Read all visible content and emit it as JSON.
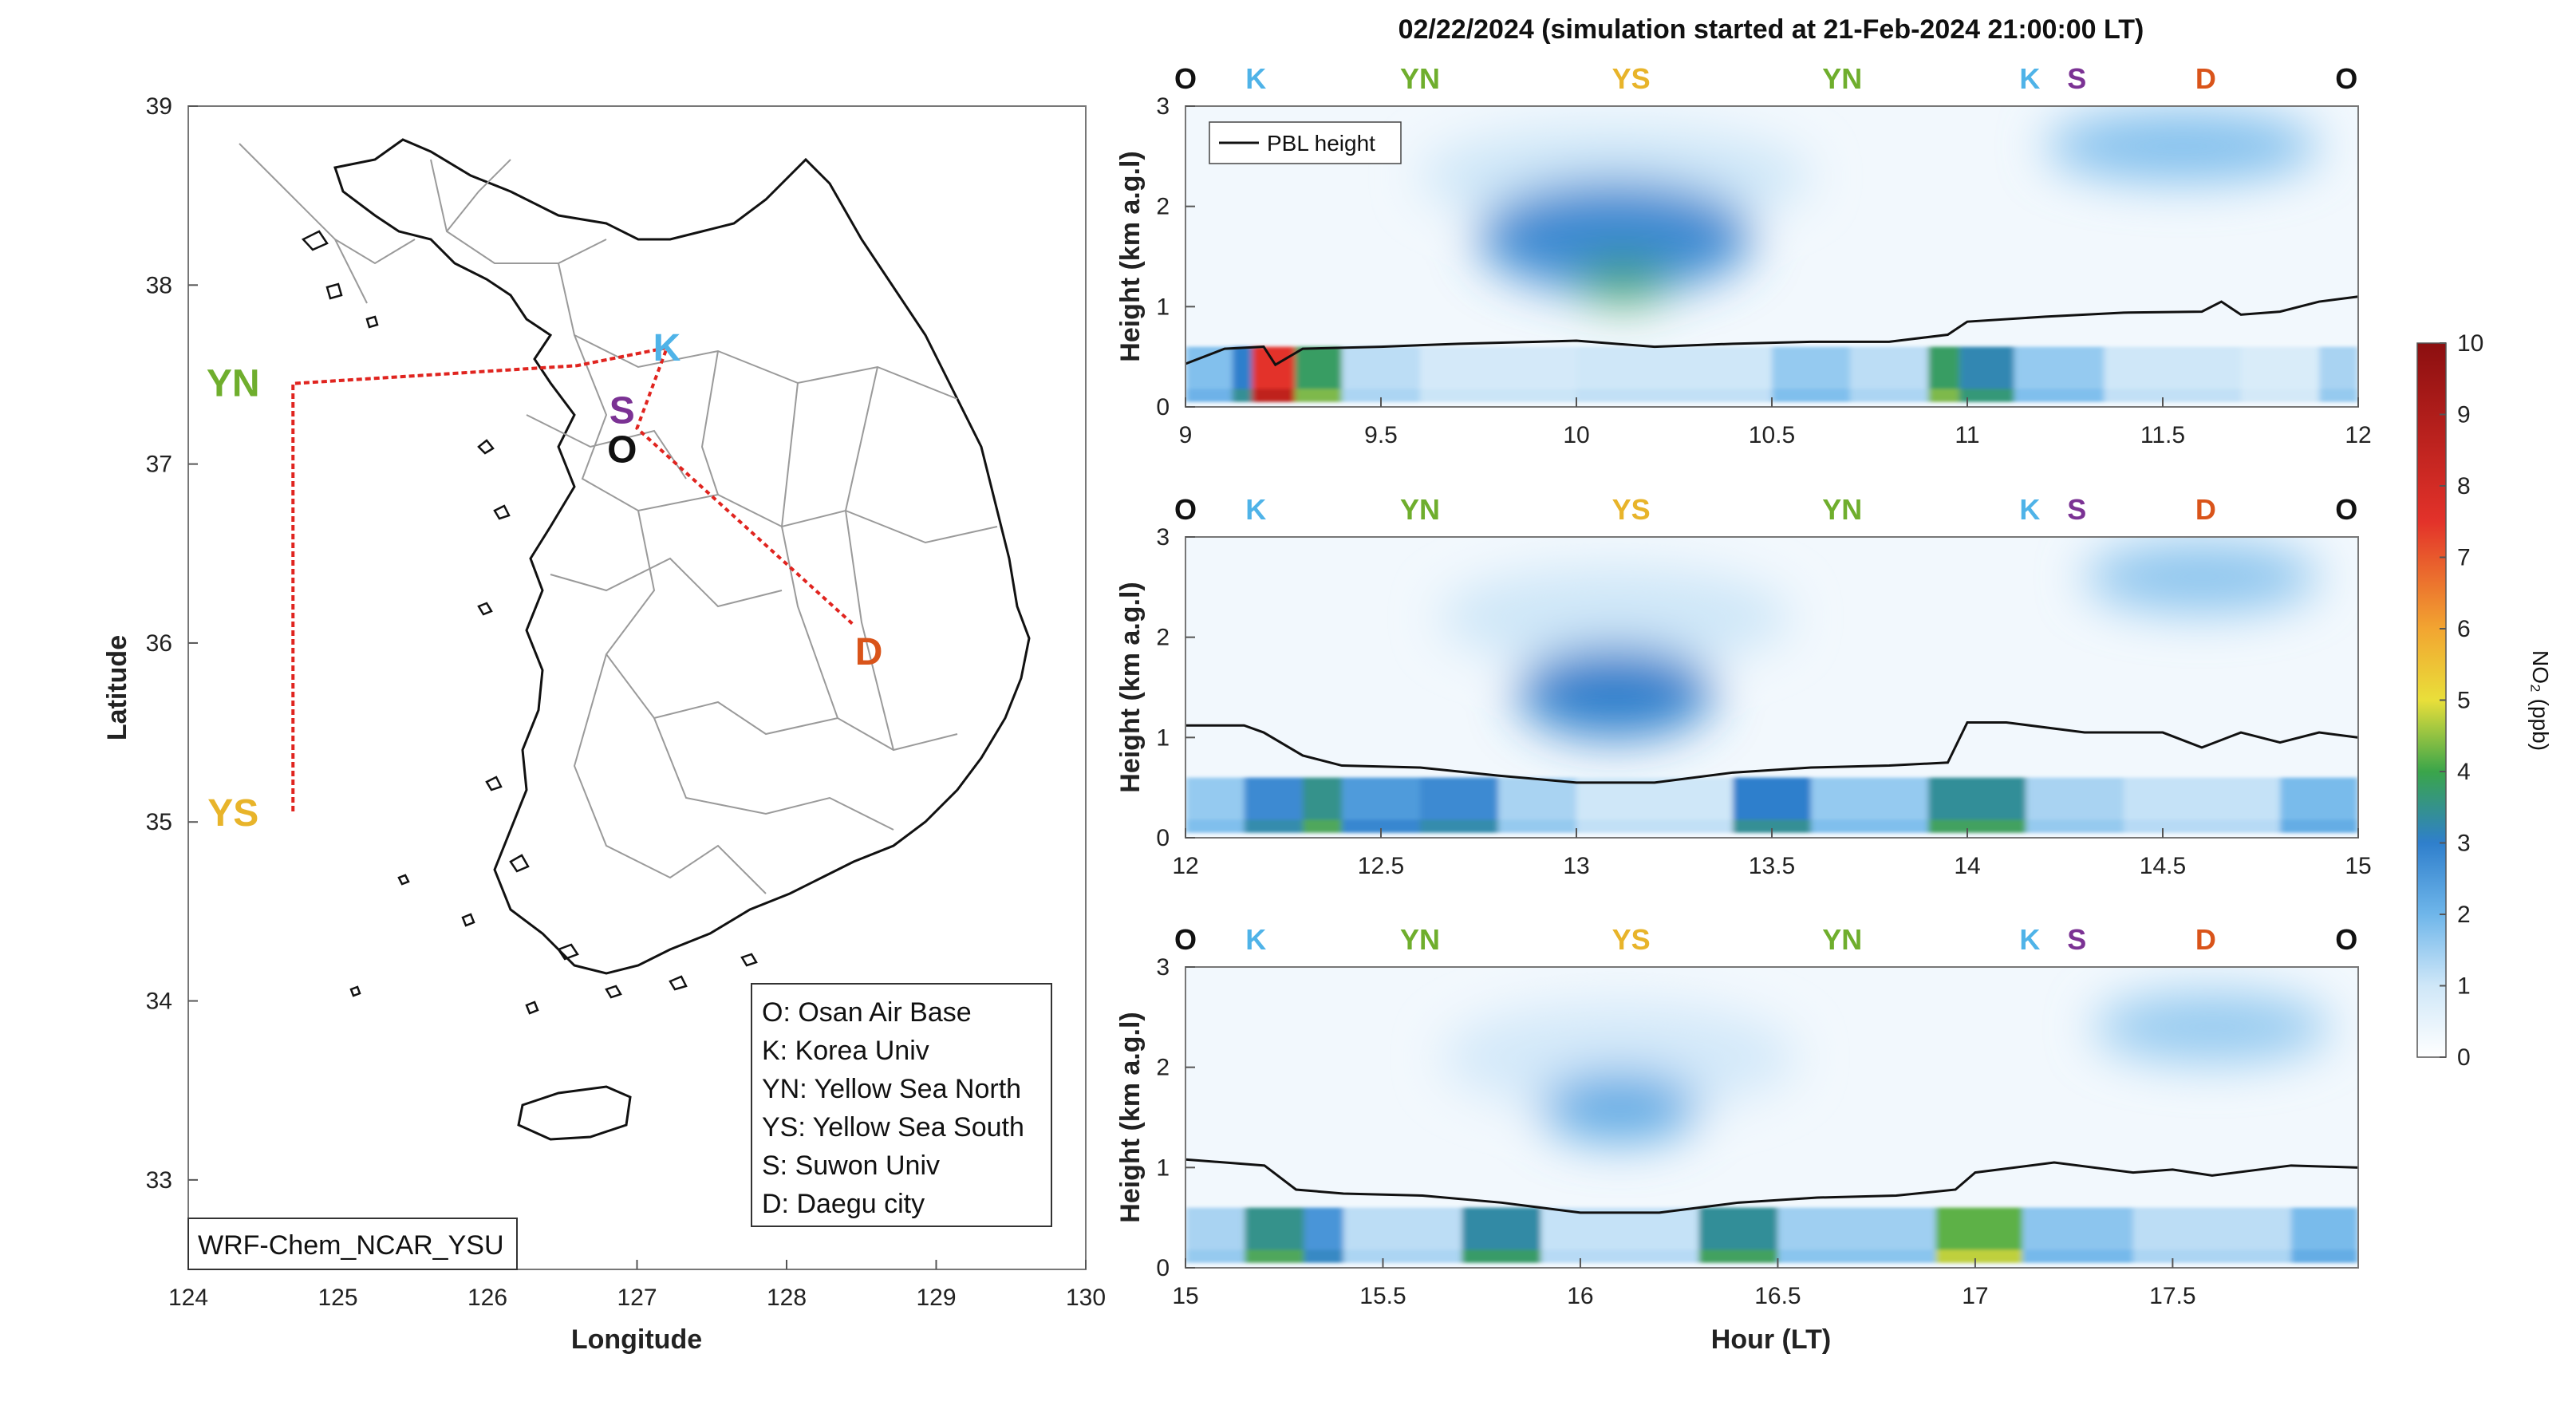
{
  "colors": {
    "O": "#111111",
    "K": "#4fb3e8",
    "YN": "#6fae2d",
    "YS": "#e8b42a",
    "S": "#7b3294",
    "D": "#d9541a",
    "route": "#e0241f",
    "pbl": "#111111"
  },
  "map": {
    "xlabel": "Longitude",
    "ylabel": "Latitude",
    "xticks": [
      "124",
      "125",
      "126",
      "127",
      "128",
      "129",
      "130"
    ],
    "yticks": [
      "39",
      "38",
      "37",
      "36",
      "35",
      "34",
      "33"
    ],
    "xlim": [
      124,
      130
    ],
    "ylim": [
      32.5,
      39
    ],
    "model_label": "WRF-Chem_NCAR_YSU",
    "sites": [
      {
        "key": "K",
        "label": "K",
        "lon": 127.2,
        "lat": 37.65
      },
      {
        "key": "S",
        "label": "S",
        "lon": 126.9,
        "lat": 37.3
      },
      {
        "key": "O",
        "label": "O",
        "lon": 126.9,
        "lat": 37.08
      },
      {
        "key": "YN",
        "label": "YN",
        "lon": 124.3,
        "lat": 37.45
      },
      {
        "key": "YS",
        "label": "YS",
        "lon": 124.3,
        "lat": 35.05
      },
      {
        "key": "D",
        "label": "D",
        "lon": 128.55,
        "lat": 35.95
      }
    ],
    "route": [
      [
        127.2,
        37.65
      ],
      [
        126.6,
        37.55
      ],
      [
        124.7,
        37.45
      ],
      [
        124.7,
        35.05
      ],
      [
        124.7,
        37.45
      ],
      [
        126.6,
        37.55
      ],
      [
        127.2,
        37.65
      ],
      [
        127.0,
        37.2
      ],
      [
        128.45,
        36.1
      ]
    ],
    "legend": [
      "O: Osan Air Base",
      "K: Korea Univ",
      "YN: Yellow Sea North",
      "YS: Yellow Sea South",
      "S: Suwon Univ",
      "D: Daegu city"
    ]
  },
  "title": "02/22/2024 (simulation started at 21-Feb-2024 21:00:00 LT)",
  "panels_common": {
    "ylabel": "Height (km a.g.l)",
    "yticks": [
      "0",
      "1",
      "2",
      "3"
    ],
    "site_sequence": [
      "O",
      "K",
      "YN",
      "YS",
      "YN",
      "K",
      "S",
      "D",
      "O"
    ],
    "pbl_legend": "PBL height"
  },
  "colorbar": {
    "label": "NO₂ (ppb)",
    "ticks": [
      "0",
      "1",
      "2",
      "3",
      "4",
      "5",
      "6",
      "7",
      "8",
      "9",
      "10"
    ],
    "range": [
      0,
      10
    ]
  },
  "xlabel_bottom": "Hour (LT)",
  "chart_data": [
    {
      "type": "heatmap",
      "xlim": [
        9,
        12
      ],
      "ylim": [
        0,
        3
      ],
      "xticks": [
        "9",
        "9.5",
        "10",
        "10.5",
        "11",
        "11.5",
        "12"
      ],
      "site_x": [
        0.0,
        0.06,
        0.2,
        0.38,
        0.56,
        0.72,
        0.76,
        0.87,
        0.99
      ],
      "pbl": [
        [
          9,
          0.43
        ],
        [
          9.1,
          0.58
        ],
        [
          9.2,
          0.6
        ],
        [
          9.23,
          0.42
        ],
        [
          9.3,
          0.58
        ],
        [
          9.5,
          0.6
        ],
        [
          9.7,
          0.63
        ],
        [
          9.9,
          0.65
        ],
        [
          10,
          0.66
        ],
        [
          10.2,
          0.6
        ],
        [
          10.4,
          0.63
        ],
        [
          10.6,
          0.65
        ],
        [
          10.8,
          0.65
        ],
        [
          10.95,
          0.72
        ],
        [
          11,
          0.85
        ],
        [
          11.2,
          0.9
        ],
        [
          11.4,
          0.94
        ],
        [
          11.6,
          0.95
        ],
        [
          11.65,
          1.05
        ],
        [
          11.7,
          0.92
        ],
        [
          11.8,
          0.95
        ],
        [
          11.9,
          1.05
        ],
        [
          12,
          1.1
        ]
      ],
      "blobs": [
        {
          "x": 10.1,
          "y": 1.7,
          "rx": 0.35,
          "ry": 0.55,
          "v": 2.8
        },
        {
          "x": 10.12,
          "y": 1.25,
          "rx": 0.12,
          "ry": 0.2,
          "v": 3.8
        },
        {
          "x": 11.55,
          "y": 2.6,
          "rx": 0.35,
          "ry": 0.35,
          "v": 1.8
        },
        {
          "x": 10.1,
          "y": 2.3,
          "rx": 0.5,
          "ry": 0.5,
          "v": 1.0
        }
      ],
      "surface": [
        {
          "x0": 9.0,
          "x1": 9.12,
          "v": 1.8
        },
        {
          "x0": 9.12,
          "x1": 9.2,
          "v": 3.0
        },
        {
          "x0": 9.17,
          "x1": 9.28,
          "v": 7.5
        },
        {
          "x0": 9.28,
          "x1": 9.4,
          "v": 3.8
        },
        {
          "x0": 9.4,
          "x1": 9.6,
          "v": 1.2
        },
        {
          "x0": 9.6,
          "x1": 10.0,
          "v": 0.9
        },
        {
          "x0": 10.0,
          "x1": 10.5,
          "v": 1.0
        },
        {
          "x0": 10.5,
          "x1": 10.7,
          "v": 1.6
        },
        {
          "x0": 10.7,
          "x1": 10.9,
          "v": 1.2
        },
        {
          "x0": 10.9,
          "x1": 10.98,
          "v": 3.8
        },
        {
          "x0": 10.98,
          "x1": 11.12,
          "v": 3.2
        },
        {
          "x0": 11.12,
          "x1": 11.35,
          "v": 1.6
        },
        {
          "x0": 11.35,
          "x1": 11.7,
          "v": 1.0
        },
        {
          "x0": 11.7,
          "x1": 11.9,
          "v": 0.8
        },
        {
          "x0": 11.9,
          "x1": 12.0,
          "v": 1.4
        }
      ]
    },
    {
      "type": "heatmap",
      "xlim": [
        12,
        15
      ],
      "ylim": [
        0,
        3
      ],
      "xticks": [
        "12",
        "12.5",
        "13",
        "13.5",
        "14",
        "14.5",
        "15"
      ],
      "site_x": [
        0.0,
        0.06,
        0.2,
        0.38,
        0.56,
        0.72,
        0.76,
        0.87,
        0.99
      ],
      "pbl": [
        [
          12,
          1.12
        ],
        [
          12.15,
          1.12
        ],
        [
          12.2,
          1.05
        ],
        [
          12.3,
          0.82
        ],
        [
          12.4,
          0.72
        ],
        [
          12.6,
          0.7
        ],
        [
          12.8,
          0.62
        ],
        [
          13,
          0.55
        ],
        [
          13.2,
          0.55
        ],
        [
          13.4,
          0.65
        ],
        [
          13.6,
          0.7
        ],
        [
          13.8,
          0.72
        ],
        [
          13.95,
          0.75
        ],
        [
          14,
          1.15
        ],
        [
          14.1,
          1.15
        ],
        [
          14.3,
          1.05
        ],
        [
          14.5,
          1.05
        ],
        [
          14.6,
          0.9
        ],
        [
          14.7,
          1.05
        ],
        [
          14.8,
          0.95
        ],
        [
          14.9,
          1.05
        ],
        [
          15,
          1.0
        ]
      ],
      "blobs": [
        {
          "x": 13.1,
          "y": 1.45,
          "rx": 0.25,
          "ry": 0.45,
          "v": 3.0
        },
        {
          "x": 13.1,
          "y": 2.2,
          "rx": 0.45,
          "ry": 0.5,
          "v": 1.0
        },
        {
          "x": 14.6,
          "y": 2.6,
          "rx": 0.3,
          "ry": 0.35,
          "v": 1.7
        }
      ],
      "surface": [
        {
          "x0": 12.0,
          "x1": 12.15,
          "v": 1.6
        },
        {
          "x0": 12.15,
          "x1": 12.3,
          "v": 2.8
        },
        {
          "x0": 12.3,
          "x1": 12.4,
          "v": 3.5
        },
        {
          "x0": 12.4,
          "x1": 12.6,
          "v": 2.5
        },
        {
          "x0": 12.6,
          "x1": 12.8,
          "v": 2.8
        },
        {
          "x0": 12.8,
          "x1": 13.0,
          "v": 1.4
        },
        {
          "x0": 13.0,
          "x1": 13.4,
          "v": 1.0
        },
        {
          "x0": 13.4,
          "x1": 13.6,
          "v": 3.0
        },
        {
          "x0": 13.6,
          "x1": 13.9,
          "v": 1.6
        },
        {
          "x0": 13.9,
          "x1": 14.15,
          "v": 3.4
        },
        {
          "x0": 14.15,
          "x1": 14.4,
          "v": 1.4
        },
        {
          "x0": 14.4,
          "x1": 14.8,
          "v": 1.1
        },
        {
          "x0": 14.8,
          "x1": 15.0,
          "v": 1.9
        }
      ]
    },
    {
      "type": "heatmap",
      "xlim": [
        15,
        17.97
      ],
      "ylim": [
        0,
        3
      ],
      "xticks": [
        "15",
        "15.5",
        "16",
        "16.5",
        "17",
        "17.5"
      ],
      "site_x": [
        0.0,
        0.06,
        0.2,
        0.38,
        0.56,
        0.72,
        0.76,
        0.87,
        0.99
      ],
      "pbl": [
        [
          15,
          1.08
        ],
        [
          15.1,
          1.05
        ],
        [
          15.2,
          1.02
        ],
        [
          15.28,
          0.78
        ],
        [
          15.4,
          0.74
        ],
        [
          15.6,
          0.72
        ],
        [
          15.8,
          0.65
        ],
        [
          16,
          0.55
        ],
        [
          16.2,
          0.55
        ],
        [
          16.4,
          0.65
        ],
        [
          16.6,
          0.7
        ],
        [
          16.8,
          0.72
        ],
        [
          16.95,
          0.78
        ],
        [
          17,
          0.95
        ],
        [
          17.2,
          1.05
        ],
        [
          17.4,
          0.95
        ],
        [
          17.5,
          0.98
        ],
        [
          17.6,
          0.92
        ],
        [
          17.8,
          1.02
        ],
        [
          17.97,
          1.0
        ]
      ],
      "blobs": [
        {
          "x": 16.1,
          "y": 1.6,
          "rx": 0.2,
          "ry": 0.35,
          "v": 2.2
        },
        {
          "x": 16.1,
          "y": 2.1,
          "rx": 0.45,
          "ry": 0.55,
          "v": 0.9
        },
        {
          "x": 17.6,
          "y": 2.4,
          "rx": 0.3,
          "ry": 0.35,
          "v": 1.6
        }
      ],
      "surface": [
        {
          "x0": 15.0,
          "x1": 15.15,
          "v": 1.4
        },
        {
          "x0": 15.15,
          "x1": 15.3,
          "v": 3.5
        },
        {
          "x0": 15.3,
          "x1": 15.4,
          "v": 2.6
        },
        {
          "x0": 15.4,
          "x1": 15.7,
          "v": 1.2
        },
        {
          "x0": 15.7,
          "x1": 15.9,
          "v": 3.3
        },
        {
          "x0": 15.9,
          "x1": 16.3,
          "v": 1.1
        },
        {
          "x0": 16.3,
          "x1": 16.5,
          "v": 3.4
        },
        {
          "x0": 16.5,
          "x1": 16.9,
          "v": 1.5
        },
        {
          "x0": 16.9,
          "x1": 17.12,
          "v": 4.2
        },
        {
          "x0": 17.12,
          "x1": 17.4,
          "v": 1.7
        },
        {
          "x0": 17.4,
          "x1": 17.8,
          "v": 1.2
        },
        {
          "x0": 17.8,
          "x1": 17.97,
          "v": 1.9
        }
      ]
    }
  ]
}
